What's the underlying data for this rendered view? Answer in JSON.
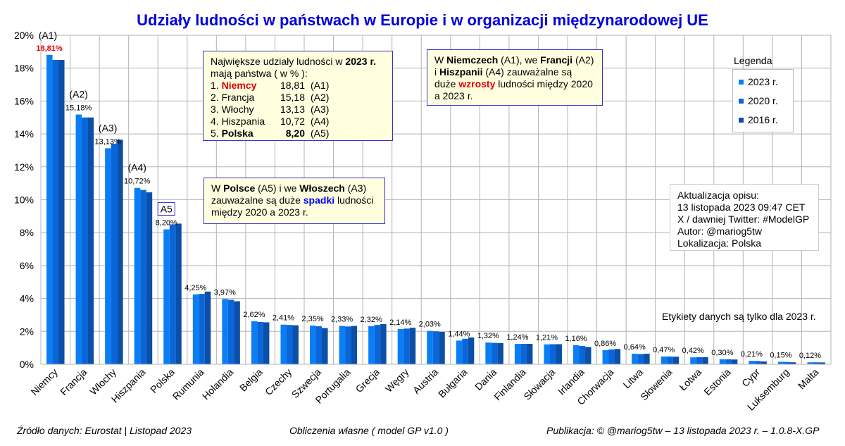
{
  "chart_data": {
    "type": "bar",
    "title": "Udziały ludności w państwach w Europie i w organizacji międzynarodowej UE",
    "categories": [
      "Niemcy",
      "Francja",
      "Włochy",
      "Hiszpania",
      "Polska",
      "Rumunia",
      "Holandia",
      "Belgia",
      "Czechy",
      "Szwecja",
      "Portugalia",
      "Grecja",
      "Węgry",
      "Austria",
      "Bułgaria",
      "Dania",
      "Finlandia",
      "Słowacja",
      "Irlandia",
      "Chorwacja",
      "Litwa",
      "Słowenia",
      "Łotwa",
      "Estonia",
      "Cypr",
      "Luksemburg",
      "Malta"
    ],
    "series": [
      {
        "name": "2023 r.",
        "color": "#0a7ff5",
        "values": [
          18.81,
          15.18,
          13.13,
          10.72,
          8.2,
          4.25,
          3.97,
          2.62,
          2.41,
          2.35,
          2.33,
          2.32,
          2.14,
          2.03,
          1.44,
          1.32,
          1.24,
          1.21,
          1.16,
          0.86,
          0.64,
          0.47,
          0.42,
          0.3,
          0.21,
          0.15,
          0.12
        ]
      },
      {
        "name": "2020 r.",
        "color": "#0a66d8",
        "values": [
          18.5,
          15.0,
          13.4,
          10.6,
          8.5,
          4.28,
          3.92,
          2.57,
          2.39,
          2.31,
          2.3,
          2.39,
          2.17,
          2.0,
          1.55,
          1.3,
          1.24,
          1.22,
          1.11,
          0.9,
          0.62,
          0.47,
          0.43,
          0.3,
          0.2,
          0.14,
          0.12
        ]
      },
      {
        "name": "2016 r.",
        "color": "#0a4fa8",
        "values": [
          18.5,
          15.0,
          13.65,
          10.45,
          8.55,
          4.42,
          3.83,
          2.55,
          2.37,
          2.2,
          2.33,
          2.44,
          2.22,
          1.97,
          1.63,
          1.29,
          1.24,
          1.22,
          1.05,
          0.93,
          0.64,
          0.46,
          0.43,
          0.29,
          0.17,
          0.12,
          0.11
        ]
      }
    ],
    "data_labels": [
      "18,81%",
      "15,18%",
      "13,13%",
      "10,72%",
      "8,20%",
      "4,25%",
      "3,97%",
      "2,62%",
      "2,41%",
      "2,35%",
      "2,33%",
      "2,32%",
      "2,14%",
      "2,03%",
      "1,44%",
      "1,32%",
      "1,24%",
      "1,21%",
      "1,16%",
      "0,86%",
      "0,64%",
      "0,47%",
      "0,42%",
      "0,30%",
      "0,21%",
      "0,15%",
      "0,12%"
    ],
    "rank_labels": [
      "(A1)",
      "(A2)",
      "(A3)",
      "(A4)",
      "A5"
    ],
    "ylim": [
      0,
      20
    ],
    "yticks": [
      "0%",
      "2%",
      "4%",
      "6%",
      "8%",
      "10%",
      "12%",
      "14%",
      "16%",
      "18%",
      "20%"
    ],
    "grid": true,
    "legend_position": "right"
  },
  "legend": {
    "title": "Legenda",
    "items": [
      "2023 r.",
      "2020 r.",
      "2016 r."
    ]
  },
  "box_top5": {
    "intro_a": "Największe udziały ludności w ",
    "intro_year": "2023 r.",
    "intro_b": "mają państwa ( w % ):",
    "rows": [
      {
        "n": "1.",
        "name": "Niemcy",
        "value": "18,81",
        "code": "(A1)"
      },
      {
        "n": "2.",
        "name": "Francja",
        "value": "15,18",
        "code": "(A2)"
      },
      {
        "n": "3.",
        "name": "Włochy",
        "value": "13,13",
        "code": "(A3)"
      },
      {
        "n": "4.",
        "name": "Hiszpania",
        "value": "10,72",
        "code": "(A4)"
      },
      {
        "n": "5.",
        "name": "Polska",
        "value": "8,20",
        "code": "(A5)"
      }
    ]
  },
  "box_growth": {
    "t1": "W ",
    "c1": "Niemczech",
    "t2": " (A1), we ",
    "c2": "Francji",
    "t3": " (A2)",
    "t4": "i ",
    "c3": "Hiszpanii",
    "t5": " (A4) zauważalne są",
    "t6": "duże ",
    "hl": "wzrosty",
    "t7": " ludności między 2020",
    "t8": "a 2023 r."
  },
  "box_drop": {
    "t1": "W ",
    "c1": "Polsce",
    "t2": " (A5) i we ",
    "c2": "Włoszech",
    "t3": " (A3)",
    "t4": "zauważalne są duże ",
    "hl": "spadki",
    "t5": " ludności",
    "t6": "między 2020 a 2023 r."
  },
  "update_box": {
    "lines": [
      "Aktualizacja opisu:",
      "13 listopada 2023 09:47 CET",
      "X / dawniej Twitter: #ModelGP",
      "Autor: @mariog5tw",
      "Lokalizacja: Polska"
    ]
  },
  "note_labels": "Etykiety danych są tylko dla 2023 r.",
  "footer": {
    "source": "Źródło danych:  Eurostat | Listopad 2023",
    "calc": "Obliczenia własne ( model GP v1.0 )",
    "pub": "Publikacja:  © @mariog5tw – 13 listopada 2023 r. – 1.0.8-X.GP"
  }
}
